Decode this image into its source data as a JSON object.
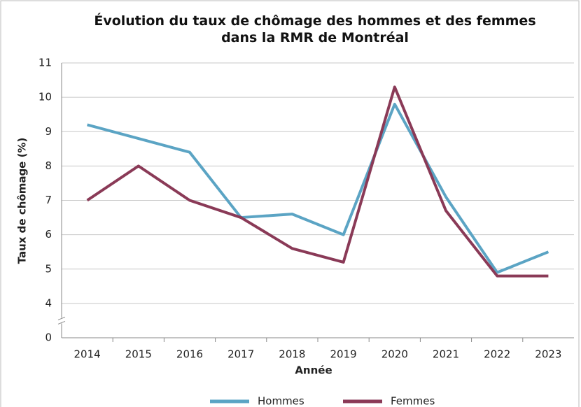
{
  "chart_data": {
    "type": "line",
    "title": "Évolution du taux de chômage des hommes et des femmes\ndans la RMR de Montréal",
    "x_label": "Année",
    "y_label": "Taux de chômage (%)",
    "categories": [
      "2014",
      "2015",
      "2016",
      "2017",
      "2018",
      "2019",
      "2020",
      "2021",
      "2022",
      "2023"
    ],
    "series": [
      {
        "name": "Hommes",
        "color": "#5ba4c4",
        "values": [
          9.2,
          8.8,
          8.4,
          6.5,
          6.6,
          6.0,
          9.8,
          7.1,
          4.9,
          5.5
        ]
      },
      {
        "name": "Femmes",
        "color": "#8a3a57",
        "values": [
          7.0,
          8.0,
          7.0,
          6.5,
          5.6,
          5.2,
          10.3,
          6.7,
          4.8,
          4.8
        ]
      }
    ],
    "ylim": [
      0,
      11
    ],
    "yticks": [
      0,
      4,
      5,
      6,
      7,
      8,
      9,
      10,
      11
    ],
    "y_axis_break": [
      0,
      4
    ],
    "grid": true,
    "legend": "bottom"
  }
}
